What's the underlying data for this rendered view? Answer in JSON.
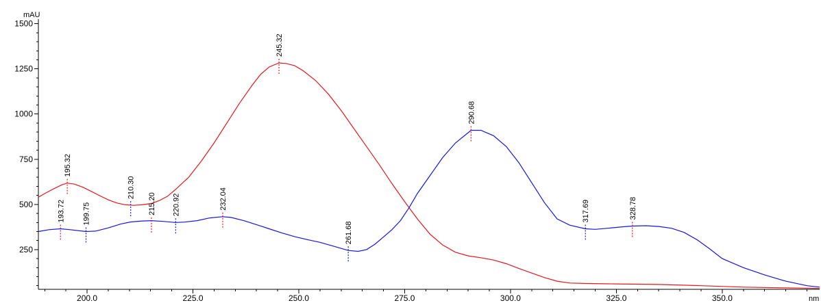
{
  "chart_data": {
    "type": "line",
    "title": "",
    "xlabel": "nm",
    "ylabel": "mAU",
    "xlim": [
      188.5,
      373
    ],
    "ylim": [
      30,
      1510
    ],
    "x_ticks": [
      200.0,
      225.0,
      250.0,
      275.0,
      300.0,
      325.0,
      350.0
    ],
    "x_tick_labels": [
      "200.0",
      "225.0",
      "250.0",
      "275.0",
      "300.0",
      "325.0",
      "350.0"
    ],
    "y_ticks": [
      250,
      500,
      750,
      1000,
      1250,
      1500
    ],
    "y_tick_labels": [
      "250",
      "500",
      "750",
      "1000",
      "1250",
      "1500"
    ],
    "grid": false,
    "series": [
      {
        "color": "#e8161b",
        "points": [
          [
            188.5,
            540
          ],
          [
            190,
            560
          ],
          [
            192,
            585
          ],
          [
            194,
            608
          ],
          [
            195.32,
            618
          ],
          [
            197,
            612
          ],
          [
            199,
            595
          ],
          [
            201,
            572
          ],
          [
            203,
            548
          ],
          [
            205,
            525
          ],
          [
            207,
            508
          ],
          [
            209,
            498
          ],
          [
            211,
            495
          ],
          [
            213,
            498
          ],
          [
            215.2,
            505
          ],
          [
            217,
            520
          ],
          [
            219,
            545
          ],
          [
            221,
            585
          ],
          [
            224,
            650
          ],
          [
            227,
            740
          ],
          [
            230,
            840
          ],
          [
            233,
            950
          ],
          [
            236,
            1060
          ],
          [
            239,
            1160
          ],
          [
            241,
            1220
          ],
          [
            243,
            1260
          ],
          [
            245.32,
            1283
          ],
          [
            247,
            1280
          ],
          [
            249,
            1268
          ],
          [
            251,
            1240
          ],
          [
            254,
            1185
          ],
          [
            257,
            1110
          ],
          [
            260,
            1020
          ],
          [
            263,
            920
          ],
          [
            266,
            820
          ],
          [
            269,
            720
          ],
          [
            272,
            615
          ],
          [
            275,
            515
          ],
          [
            278,
            420
          ],
          [
            281,
            335
          ],
          [
            284,
            275
          ],
          [
            287,
            235
          ],
          [
            290,
            215
          ],
          [
            293,
            205
          ],
          [
            296,
            192
          ],
          [
            299,
            172
          ],
          [
            302,
            145
          ],
          [
            305,
            120
          ],
          [
            308,
            95
          ],
          [
            311,
            75
          ],
          [
            314,
            65
          ],
          [
            318,
            62
          ],
          [
            325,
            60
          ],
          [
            335,
            57
          ],
          [
            345,
            50
          ],
          [
            355,
            42
          ],
          [
            365,
            38
          ],
          [
            373,
            35
          ]
        ]
      },
      {
        "color": "#1414e6",
        "points": [
          [
            188.5,
            350
          ],
          [
            191,
            360
          ],
          [
            193.72,
            365
          ],
          [
            196,
            360
          ],
          [
            199.75,
            350
          ],
          [
            202,
            352
          ],
          [
            205,
            370
          ],
          [
            208,
            392
          ],
          [
            210.3,
            403
          ],
          [
            213,
            408
          ],
          [
            215.2,
            410
          ],
          [
            218,
            406
          ],
          [
            220.92,
            400
          ],
          [
            223,
            402
          ],
          [
            226,
            410
          ],
          [
            229,
            425
          ],
          [
            232.04,
            432
          ],
          [
            234,
            428
          ],
          [
            237,
            410
          ],
          [
            240,
            388
          ],
          [
            243,
            365
          ],
          [
            246,
            342
          ],
          [
            249,
            322
          ],
          [
            252,
            305
          ],
          [
            255,
            290
          ],
          [
            258,
            270
          ],
          [
            261.68,
            245
          ],
          [
            264,
            240
          ],
          [
            266,
            250
          ],
          [
            268,
            280
          ],
          [
            270,
            320
          ],
          [
            272,
            360
          ],
          [
            274,
            410
          ],
          [
            276,
            480
          ],
          [
            278,
            560
          ],
          [
            281,
            660
          ],
          [
            284,
            760
          ],
          [
            287,
            840
          ],
          [
            290.68,
            910
          ],
          [
            293,
            910
          ],
          [
            296,
            880
          ],
          [
            299,
            820
          ],
          [
            302,
            730
          ],
          [
            305,
            620
          ],
          [
            308,
            510
          ],
          [
            311,
            420
          ],
          [
            314,
            385
          ],
          [
            317.69,
            365
          ],
          [
            320,
            362
          ],
          [
            323,
            368
          ],
          [
            326,
            375
          ],
          [
            328.78,
            380
          ],
          [
            332,
            382
          ],
          [
            335,
            378
          ],
          [
            338,
            368
          ],
          [
            341,
            345
          ],
          [
            344,
            305
          ],
          [
            347,
            255
          ],
          [
            350,
            200
          ],
          [
            355,
            150
          ],
          [
            360,
            110
          ],
          [
            365,
            75
          ],
          [
            370,
            50
          ],
          [
            373,
            42
          ]
        ]
      }
    ],
    "peak_labels": [
      {
        "x": 195.32,
        "y": 618,
        "text": "195.32",
        "color": "#e8161b"
      },
      {
        "x": 245.32,
        "y": 1283,
        "text": "245.32",
        "color": "#e8161b"
      },
      {
        "x": 215.2,
        "y": 405,
        "text": "215.20",
        "color": "#e8161b"
      },
      {
        "x": 193.72,
        "y": 365,
        "text": "193.72",
        "color": "#e8161b"
      },
      {
        "x": 199.75,
        "y": 350,
        "text": "199.75",
        "color": "#1414e6"
      },
      {
        "x": 210.3,
        "y": 495,
        "text": "210.30",
        "color": "#1414e6"
      },
      {
        "x": 220.92,
        "y": 400,
        "text": "220.92",
        "color": "#1414e6"
      },
      {
        "x": 232.04,
        "y": 432,
        "text": "232.04",
        "color": "#e8161b"
      },
      {
        "x": 261.68,
        "y": 245,
        "text": "261.68",
        "color": "#1414e6"
      },
      {
        "x": 290.68,
        "y": 910,
        "text": "290.68",
        "color": "#e8161b"
      },
      {
        "x": 317.69,
        "y": 365,
        "text": "317.69",
        "color": "#1414e6"
      },
      {
        "x": 328.78,
        "y": 380,
        "text": "328.78",
        "color": "#e8161b"
      }
    ]
  }
}
